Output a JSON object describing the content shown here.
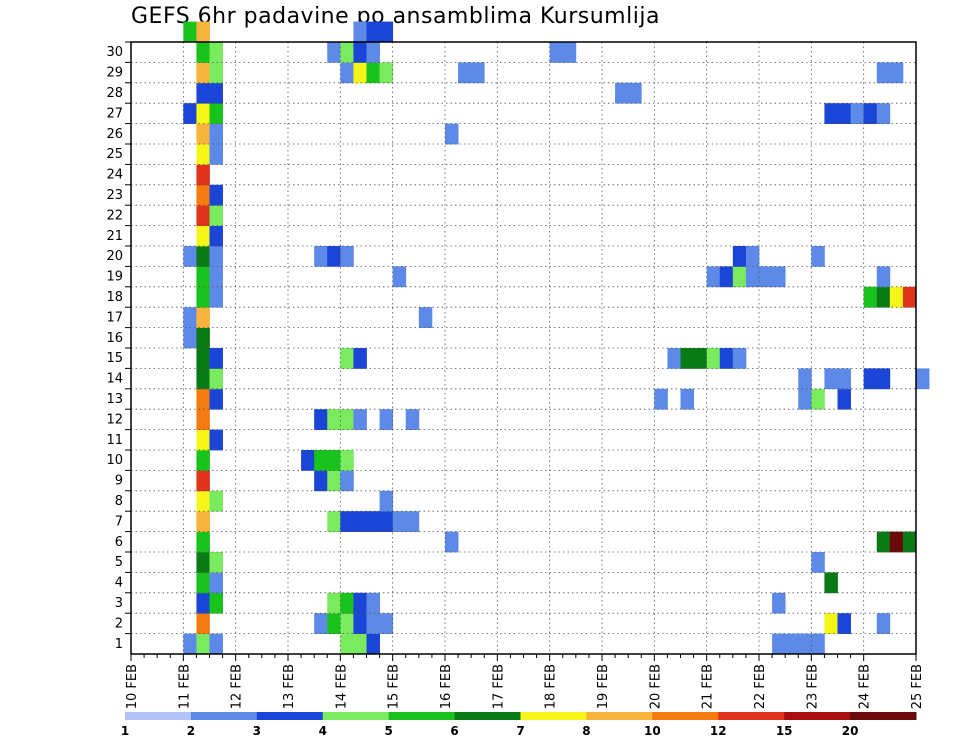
{
  "chart_data": {
    "type": "heatmap",
    "title": "GEFS 6hr padavine po ansamblima Kursumlija",
    "xlabel": "",
    "ylabel": "",
    "x_tick_labels": [
      "10 FEB",
      "11 FEB",
      "12 FEB",
      "13 FEB",
      "14 FEB",
      "15 FEB",
      "16 FEB",
      "17 FEB",
      "18 FEB",
      "19 FEB",
      "20 FEB",
      "21 FEB",
      "22 FEB",
      "23 FEB",
      "24 FEB",
      "25 FEB"
    ],
    "y_tick_labels": [
      "1",
      "2",
      "3",
      "4",
      "5",
      "6",
      "7",
      "8",
      "9",
      "10",
      "11",
      "12",
      "13",
      "14",
      "15",
      "16",
      "17",
      "18",
      "19",
      "20",
      "21",
      "22",
      "23",
      "24",
      "25",
      "26",
      "27",
      "28",
      "29",
      "30"
    ],
    "ylim": [
      0,
      30
    ],
    "time_step_hours": 6,
    "grid": true,
    "colorbar": {
      "levels": [
        1,
        2,
        3,
        4,
        5,
        6,
        7,
        8,
        10,
        12,
        15,
        20
      ],
      "colors": [
        "#b0c4f5",
        "#5d8ae8",
        "#1a45d6",
        "#7aea5e",
        "#18c41c",
        "#0a7a16",
        "#f5f51a",
        "#f8b43a",
        "#f57b10",
        "#e0331a",
        "#a81010",
        "#6a0a0a"
      ]
    },
    "cells": [
      {
        "m": 0,
        "s": 4,
        "c": 1
      },
      {
        "m": 0,
        "s": 5,
        "c": 3
      },
      {
        "m": 0,
        "s": 6,
        "c": 1
      },
      {
        "m": 0,
        "s": 16,
        "c": 3
      },
      {
        "m": 0,
        "s": 17,
        "c": 3
      },
      {
        "m": 0,
        "s": 18,
        "c": 2
      },
      {
        "m": 0,
        "s": 49,
        "c": 1
      },
      {
        "m": 0,
        "s": 50,
        "c": 1
      },
      {
        "m": 0,
        "s": 51,
        "c": 1
      },
      {
        "m": 0,
        "s": 52,
        "c": 1
      },
      {
        "m": 1,
        "s": 5,
        "c": 8
      },
      {
        "m": 1,
        "s": 14,
        "c": 1
      },
      {
        "m": 1,
        "s": 15,
        "c": 4
      },
      {
        "m": 1,
        "s": 16,
        "c": 3
      },
      {
        "m": 1,
        "s": 17,
        "c": 2
      },
      {
        "m": 1,
        "s": 18,
        "c": 1
      },
      {
        "m": 1,
        "s": 19,
        "c": 1
      },
      {
        "m": 1,
        "s": 53,
        "c": 6
      },
      {
        "m": 1,
        "s": 54,
        "c": 2
      },
      {
        "m": 1,
        "s": 57,
        "c": 1
      },
      {
        "m": 2,
        "s": 5,
        "c": 2
      },
      {
        "m": 2,
        "s": 6,
        "c": 4
      },
      {
        "m": 2,
        "s": 15,
        "c": 3
      },
      {
        "m": 2,
        "s": 16,
        "c": 4
      },
      {
        "m": 2,
        "s": 17,
        "c": 2
      },
      {
        "m": 2,
        "s": 18,
        "c": 1
      },
      {
        "m": 2,
        "s": 49,
        "c": 1
      },
      {
        "m": 3,
        "s": 5,
        "c": 4
      },
      {
        "m": 3,
        "s": 6,
        "c": 1
      },
      {
        "m": 3,
        "s": 53,
        "c": 5
      },
      {
        "m": 4,
        "s": 5,
        "c": 5
      },
      {
        "m": 4,
        "s": 6,
        "c": 3
      },
      {
        "m": 4,
        "s": 52,
        "c": 1
      },
      {
        "m": 5,
        "s": 5,
        "c": 4
      },
      {
        "m": 5,
        "s": 24,
        "c": 1
      },
      {
        "m": 5,
        "s": 57,
        "c": 5
      },
      {
        "m": 5,
        "s": 58,
        "c": 11
      },
      {
        "m": 5,
        "s": 59,
        "c": 5
      },
      {
        "m": 6,
        "s": 5,
        "c": 7
      },
      {
        "m": 6,
        "s": 15,
        "c": 3
      },
      {
        "m": 6,
        "s": 16,
        "c": 2
      },
      {
        "m": 6,
        "s": 17,
        "c": 2
      },
      {
        "m": 6,
        "s": 18,
        "c": 2
      },
      {
        "m": 6,
        "s": 19,
        "c": 2
      },
      {
        "m": 6,
        "s": 20,
        "c": 1
      },
      {
        "m": 6,
        "s": 21,
        "c": 1
      },
      {
        "m": 7,
        "s": 5,
        "c": 6
      },
      {
        "m": 7,
        "s": 6,
        "c": 3
      },
      {
        "m": 7,
        "s": 19,
        "c": 1
      },
      {
        "m": 8,
        "s": 5,
        "c": 9
      },
      {
        "m": 8,
        "s": 14,
        "c": 2
      },
      {
        "m": 8,
        "s": 15,
        "c": 3
      },
      {
        "m": 8,
        "s": 16,
        "c": 1
      },
      {
        "m": 9,
        "s": 5,
        "c": 4
      },
      {
        "m": 9,
        "s": 13,
        "c": 2
      },
      {
        "m": 9,
        "s": 14,
        "c": 4
      },
      {
        "m": 9,
        "s": 15,
        "c": 4
      },
      {
        "m": 9,
        "s": 16,
        "c": 3
      },
      {
        "m": 10,
        "s": 5,
        "c": 6
      },
      {
        "m": 10,
        "s": 6,
        "c": 2
      },
      {
        "m": 11,
        "s": 5,
        "c": 8
      },
      {
        "m": 11,
        "s": 14,
        "c": 2
      },
      {
        "m": 11,
        "s": 15,
        "c": 3
      },
      {
        "m": 11,
        "s": 16,
        "c": 3
      },
      {
        "m": 11,
        "s": 17,
        "c": 1
      },
      {
        "m": 11,
        "s": 19,
        "c": 1
      },
      {
        "m": 11,
        "s": 21,
        "c": 1
      },
      {
        "m": 12,
        "s": 5,
        "c": 8
      },
      {
        "m": 12,
        "s": 6,
        "c": 2
      },
      {
        "m": 12,
        "s": 40,
        "c": 1
      },
      {
        "m": 12,
        "s": 42,
        "c": 1
      },
      {
        "m": 12,
        "s": 51,
        "c": 1
      },
      {
        "m": 12,
        "s": 52,
        "c": 3
      },
      {
        "m": 12,
        "s": 54,
        "c": 2
      },
      {
        "m": 13,
        "s": 5,
        "c": 5
      },
      {
        "m": 13,
        "s": 6,
        "c": 3
      },
      {
        "m": 13,
        "s": 51,
        "c": 1
      },
      {
        "m": 13,
        "s": 53,
        "c": 1
      },
      {
        "m": 13,
        "s": 54,
        "c": 1
      },
      {
        "m": 13,
        "s": 56,
        "c": 2
      },
      {
        "m": 13,
        "s": 57,
        "c": 2
      },
      {
        "m": 13,
        "s": 60,
        "c": 1
      },
      {
        "m": 14,
        "s": 5,
        "c": 5
      },
      {
        "m": 14,
        "s": 6,
        "c": 2
      },
      {
        "m": 14,
        "s": 16,
        "c": 3
      },
      {
        "m": 14,
        "s": 17,
        "c": 2
      },
      {
        "m": 14,
        "s": 41,
        "c": 1
      },
      {
        "m": 14,
        "s": 42,
        "c": 5
      },
      {
        "m": 14,
        "s": 43,
        "c": 5
      },
      {
        "m": 14,
        "s": 44,
        "c": 3
      },
      {
        "m": 14,
        "s": 45,
        "c": 2
      },
      {
        "m": 14,
        "s": 46,
        "c": 1
      },
      {
        "m": 15,
        "s": 4,
        "c": 1
      },
      {
        "m": 15,
        "s": 5,
        "c": 5
      },
      {
        "m": 16,
        "s": 4,
        "c": 1
      },
      {
        "m": 16,
        "s": 5,
        "c": 7
      },
      {
        "m": 16,
        "s": 22,
        "c": 1
      },
      {
        "m": 17,
        "s": 5,
        "c": 4
      },
      {
        "m": 17,
        "s": 6,
        "c": 1
      },
      {
        "m": 17,
        "s": 56,
        "c": 4
      },
      {
        "m": 17,
        "s": 57,
        "c": 5
      },
      {
        "m": 17,
        "s": 58,
        "c": 6
      },
      {
        "m": 17,
        "s": 59,
        "c": 9
      },
      {
        "m": 18,
        "s": 5,
        "c": 4
      },
      {
        "m": 18,
        "s": 6,
        "c": 1
      },
      {
        "m": 18,
        "s": 20,
        "c": 1
      },
      {
        "m": 18,
        "s": 44,
        "c": 1
      },
      {
        "m": 18,
        "s": 45,
        "c": 2
      },
      {
        "m": 18,
        "s": 46,
        "c": 3
      },
      {
        "m": 18,
        "s": 47,
        "c": 1
      },
      {
        "m": 18,
        "s": 48,
        "c": 1
      },
      {
        "m": 18,
        "s": 49,
        "c": 1
      },
      {
        "m": 18,
        "s": 57,
        "c": 1
      },
      {
        "m": 19,
        "s": 4,
        "c": 1
      },
      {
        "m": 19,
        "s": 5,
        "c": 5
      },
      {
        "m": 19,
        "s": 6,
        "c": 1
      },
      {
        "m": 19,
        "s": 14,
        "c": 1
      },
      {
        "m": 19,
        "s": 15,
        "c": 2
      },
      {
        "m": 19,
        "s": 16,
        "c": 1
      },
      {
        "m": 19,
        "s": 46,
        "c": 2
      },
      {
        "m": 19,
        "s": 47,
        "c": 1
      },
      {
        "m": 19,
        "s": 52,
        "c": 1
      },
      {
        "m": 20,
        "s": 5,
        "c": 6
      },
      {
        "m": 20,
        "s": 6,
        "c": 2
      },
      {
        "m": 21,
        "s": 5,
        "c": 9
      },
      {
        "m": 21,
        "s": 6,
        "c": 3
      },
      {
        "m": 22,
        "s": 5,
        "c": 8
      },
      {
        "m": 22,
        "s": 6,
        "c": 2
      },
      {
        "m": 23,
        "s": 5,
        "c": 9
      },
      {
        "m": 24,
        "s": 5,
        "c": 6
      },
      {
        "m": 24,
        "s": 6,
        "c": 1
      },
      {
        "m": 25,
        "s": 5,
        "c": 7
      },
      {
        "m": 25,
        "s": 6,
        "c": 1
      },
      {
        "m": 25,
        "s": 24,
        "c": 1
      },
      {
        "m": 26,
        "s": 4,
        "c": 2
      },
      {
        "m": 26,
        "s": 5,
        "c": 6
      },
      {
        "m": 26,
        "s": 6,
        "c": 4
      },
      {
        "m": 26,
        "s": 53,
        "c": 2
      },
      {
        "m": 26,
        "s": 54,
        "c": 2
      },
      {
        "m": 26,
        "s": 55,
        "c": 1
      },
      {
        "m": 26,
        "s": 56,
        "c": 2
      },
      {
        "m": 26,
        "s": 57,
        "c": 1
      },
      {
        "m": 27,
        "s": 5,
        "c": 2
      },
      {
        "m": 27,
        "s": 6,
        "c": 2
      },
      {
        "m": 27,
        "s": 37,
        "c": 1
      },
      {
        "m": 27,
        "s": 38,
        "c": 1
      },
      {
        "m": 28,
        "s": 5,
        "c": 7
      },
      {
        "m": 28,
        "s": 6,
        "c": 3
      },
      {
        "m": 28,
        "s": 16,
        "c": 1
      },
      {
        "m": 28,
        "s": 17,
        "c": 6
      },
      {
        "m": 28,
        "s": 18,
        "c": 4
      },
      {
        "m": 28,
        "s": 19,
        "c": 3
      },
      {
        "m": 28,
        "s": 25,
        "c": 1
      },
      {
        "m": 28,
        "s": 26,
        "c": 1
      },
      {
        "m": 28,
        "s": 57,
        "c": 1
      },
      {
        "m": 28,
        "s": 58,
        "c": 1
      },
      {
        "m": 29,
        "s": 5,
        "c": 4
      },
      {
        "m": 29,
        "s": 6,
        "c": 3
      },
      {
        "m": 29,
        "s": 15,
        "c": 1
      },
      {
        "m": 29,
        "s": 16,
        "c": 3
      },
      {
        "m": 29,
        "s": 17,
        "c": 2
      },
      {
        "m": 29,
        "s": 18,
        "c": 1
      },
      {
        "m": 29,
        "s": 32,
        "c": 1
      },
      {
        "m": 29,
        "s": 33,
        "c": 1
      },
      {
        "m": 30,
        "s": 4,
        "c": 4
      },
      {
        "m": 30,
        "s": 5,
        "c": 7
      },
      {
        "m": 30,
        "s": 17,
        "c": 1
      },
      {
        "m": 30,
        "s": 18,
        "c": 2
      },
      {
        "m": 30,
        "s": 19,
        "c": 2
      }
    ]
  }
}
